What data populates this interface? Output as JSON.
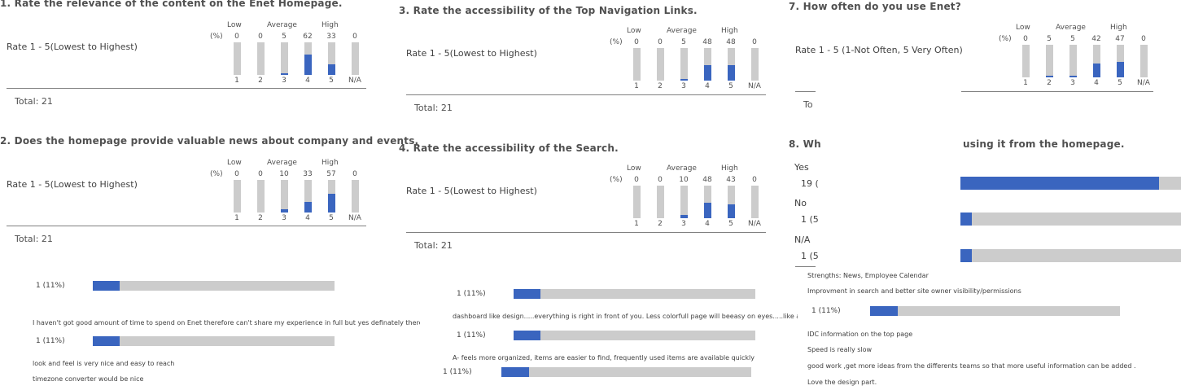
{
  "scale_labels": {
    "low": "Low",
    "average": "Average",
    "high": "High",
    "pct": "(%)"
  },
  "chart_data": [
    {
      "type": "bar",
      "title": "1. Rate the relevance of the content on the Enet Homepage.",
      "ylabel": "Rate 1 - 5(Lowest to Highest)",
      "unit": "%",
      "categories": [
        "1",
        "2",
        "3",
        "4",
        "5",
        "N/A"
      ],
      "values": [
        0,
        0,
        5,
        62,
        33,
        0
      ],
      "ylim": [
        0,
        100
      ],
      "total": "Total: 21"
    },
    {
      "type": "bar",
      "title": "2. Does the homepage provide valuable news about company and events.",
      "ylabel": "Rate 1 - 5(Lowest to Highest)",
      "unit": "%",
      "categories": [
        "1",
        "2",
        "3",
        "4",
        "5",
        "N/A"
      ],
      "values": [
        0,
        0,
        10,
        33,
        57,
        0
      ],
      "ylim": [
        0,
        100
      ],
      "total": "Total: 21"
    },
    {
      "type": "bar",
      "title": "3. Rate the accessibility of the Top Navigation Links.",
      "ylabel": "Rate 1 - 5(Lowest to Highest)",
      "unit": "%",
      "categories": [
        "1",
        "2",
        "3",
        "4",
        "5",
        "N/A"
      ],
      "values": [
        0,
        0,
        5,
        48,
        48,
        0
      ],
      "ylim": [
        0,
        100
      ],
      "total": "Total: 21"
    },
    {
      "type": "bar",
      "title": "4. Rate the accessibility of the Search.",
      "ylabel": "Rate 1 - 5(Lowest to Highest)",
      "unit": "%",
      "categories": [
        "1",
        "2",
        "3",
        "4",
        "5",
        "N/A"
      ],
      "values": [
        0,
        0,
        10,
        48,
        43,
        0
      ],
      "ylim": [
        0,
        100
      ],
      "total": "Total: 21"
    },
    {
      "type": "bar",
      "title": "7. How often do you use Enet?",
      "ylabel": "Rate 1 - 5 (1-Not Often, 5 Very Often)",
      "unit": "%",
      "categories": [
        "1",
        "2",
        "3",
        "4",
        "5",
        "N/A"
      ],
      "values": [
        0,
        5,
        5,
        42,
        47,
        0
      ],
      "ylim": [
        0,
        100
      ],
      "total": "To"
    },
    {
      "type": "bar",
      "title": "8. Wh",
      "title_tail": "using it from the homepage.",
      "orientation": "horizontal",
      "categories": [
        "Yes",
        "No",
        "N/A"
      ],
      "count_labels": [
        "19 (",
        "1 (5",
        "1 (5"
      ],
      "values": [
        90,
        5,
        5
      ]
    },
    {
      "type": "bar",
      "orientation": "horizontal",
      "series": [
        {
          "count_label": "1 (11%)",
          "value": 11
        },
        {
          "count_label": "1 (11%)",
          "value": 11
        },
        {
          "count_label": "1 (11%)",
          "value": 11
        },
        {
          "count_label": "1 (11%)",
          "value": 11
        },
        {
          "count_label": "1 (11%)",
          "value": 11
        },
        {
          "count_label": "1 (11%)",
          "value": 11
        }
      ]
    }
  ],
  "comments": {
    "c1": "I haven't got good amount of time to spend on Enet therefore can't share my experience in full but yes definately there is much impro",
    "c2": "look and feel is very nice and easy to reach",
    "c3": "timezone converter would be nice",
    "c4": "dashboard like design.....everything is right in front of you. Less colorfull page will beeasy on eyes.....like all black and w",
    "c5": "A- feels more organized, items are easier to find, frequently used items are available quickly",
    "c6": "Strengths: News, Employee Calendar",
    "c7": "Improvment in search and better site owner visibility/permissions",
    "c8": "IDC information on the top page",
    "c9": "Speed is really slow",
    "c10": "good work ,get more ideas from the differents teams so that more useful information can be added .",
    "c11": "Love the design part."
  }
}
